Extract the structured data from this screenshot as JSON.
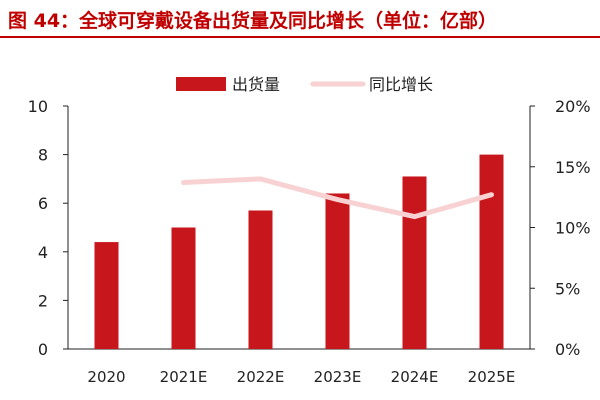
{
  "title": "图 44：全球可穿戴设备出货量及同比增长（单位：亿部）",
  "colors": {
    "bar": "#c8161d",
    "line": "#f8d2d2",
    "title": "#c00000",
    "axis": "#222222"
  },
  "chart_data": {
    "type": "bar",
    "categories": [
      "2020",
      "2021E",
      "2022E",
      "2023E",
      "2024E",
      "2025E"
    ],
    "series": [
      {
        "name": "出货量",
        "type": "bar",
        "axis": "left",
        "values": [
          4.4,
          5.0,
          5.7,
          6.4,
          7.1,
          8.0
        ]
      },
      {
        "name": "同比增长",
        "type": "line",
        "axis": "right",
        "values": [
          null,
          13.7,
          14.0,
          12.3,
          10.9,
          12.7
        ]
      }
    ],
    "ylim": [
      0,
      10
    ],
    "y_ticks": [
      "0",
      "2",
      "4",
      "6",
      "8",
      "10"
    ],
    "y2lim": [
      0,
      20
    ],
    "y2_ticks": [
      "0%",
      "5%",
      "10%",
      "15%",
      "20%"
    ],
    "grid": false,
    "legend": "top-center"
  }
}
